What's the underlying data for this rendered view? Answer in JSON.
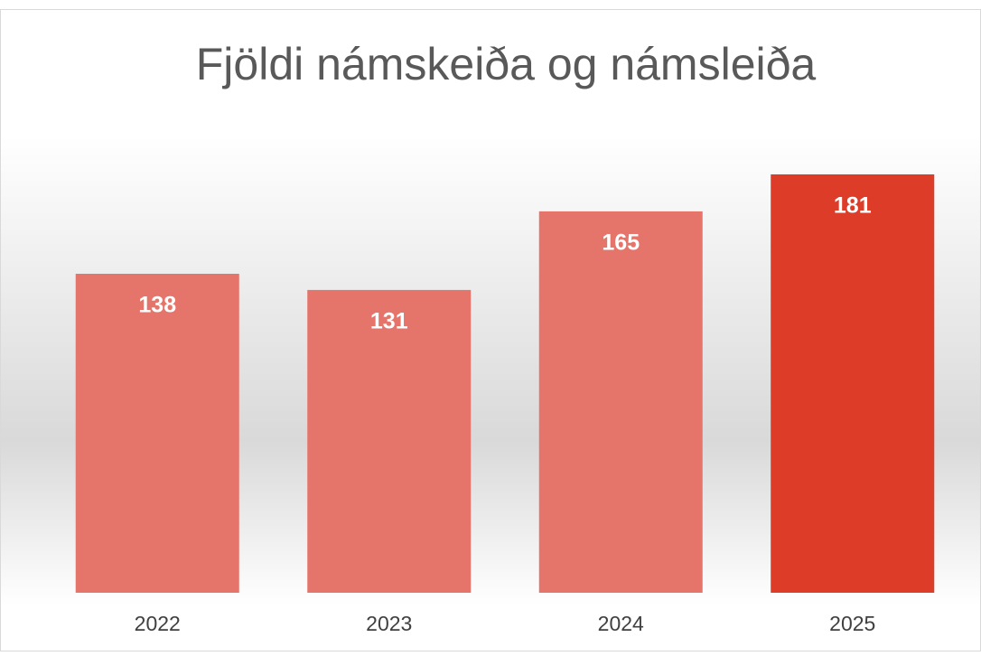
{
  "chart_data": {
    "type": "bar",
    "title": "Fjöldi námskeiða og námsleiða",
    "categories": [
      "2022",
      "2023",
      "2024",
      "2025"
    ],
    "values": [
      138,
      131,
      165,
      181
    ],
    "colors": [
      "#e5756a",
      "#e5756a",
      "#e5756a",
      "#dd3c29"
    ]
  }
}
